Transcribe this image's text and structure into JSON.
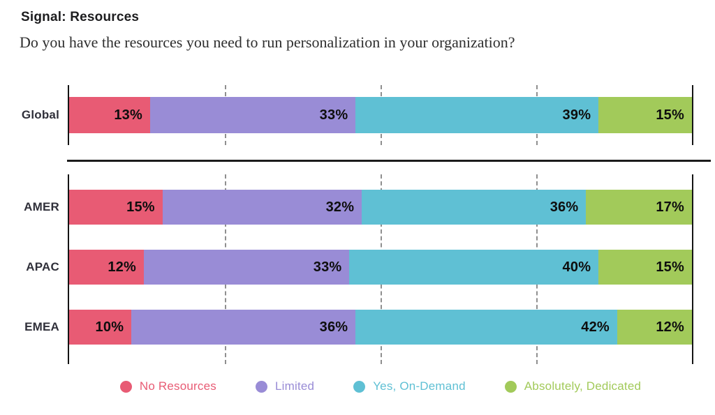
{
  "header": {
    "title": "Signal: Resources",
    "subtitle": "Do you have the resources you need to run personalization in your organization?"
  },
  "chart_data": {
    "type": "bar",
    "orientation": "horizontal",
    "stacked": true,
    "title": "Signal: Resources",
    "question": "Do you have the resources you need to run personalization in your organization?",
    "value_suffix": "%",
    "xlim": [
      0,
      100
    ],
    "gridlines_percent": [
      25,
      50,
      75
    ],
    "grid_style": "dashed-vertical",
    "legend_position": "bottom",
    "value_label_position": "inside-right-of-segment",
    "series": [
      {
        "name": "No Resources",
        "color": "#e85b74"
      },
      {
        "name": "Limited",
        "color": "#998cd6"
      },
      {
        "name": "Yes, On-Demand",
        "color": "#5fc0d4"
      },
      {
        "name": "Absolutely, Dedicated",
        "color": "#a2ca5a"
      }
    ],
    "groups": [
      {
        "categories": [
          "Global"
        ],
        "values": [
          [
            13,
            33,
            39,
            15
          ]
        ]
      },
      {
        "categories": [
          "AMER",
          "APAC",
          "EMEA"
        ],
        "values": [
          [
            15,
            32,
            36,
            17
          ],
          [
            12,
            33,
            40,
            15
          ],
          [
            10,
            36,
            42,
            12
          ]
        ]
      }
    ]
  }
}
